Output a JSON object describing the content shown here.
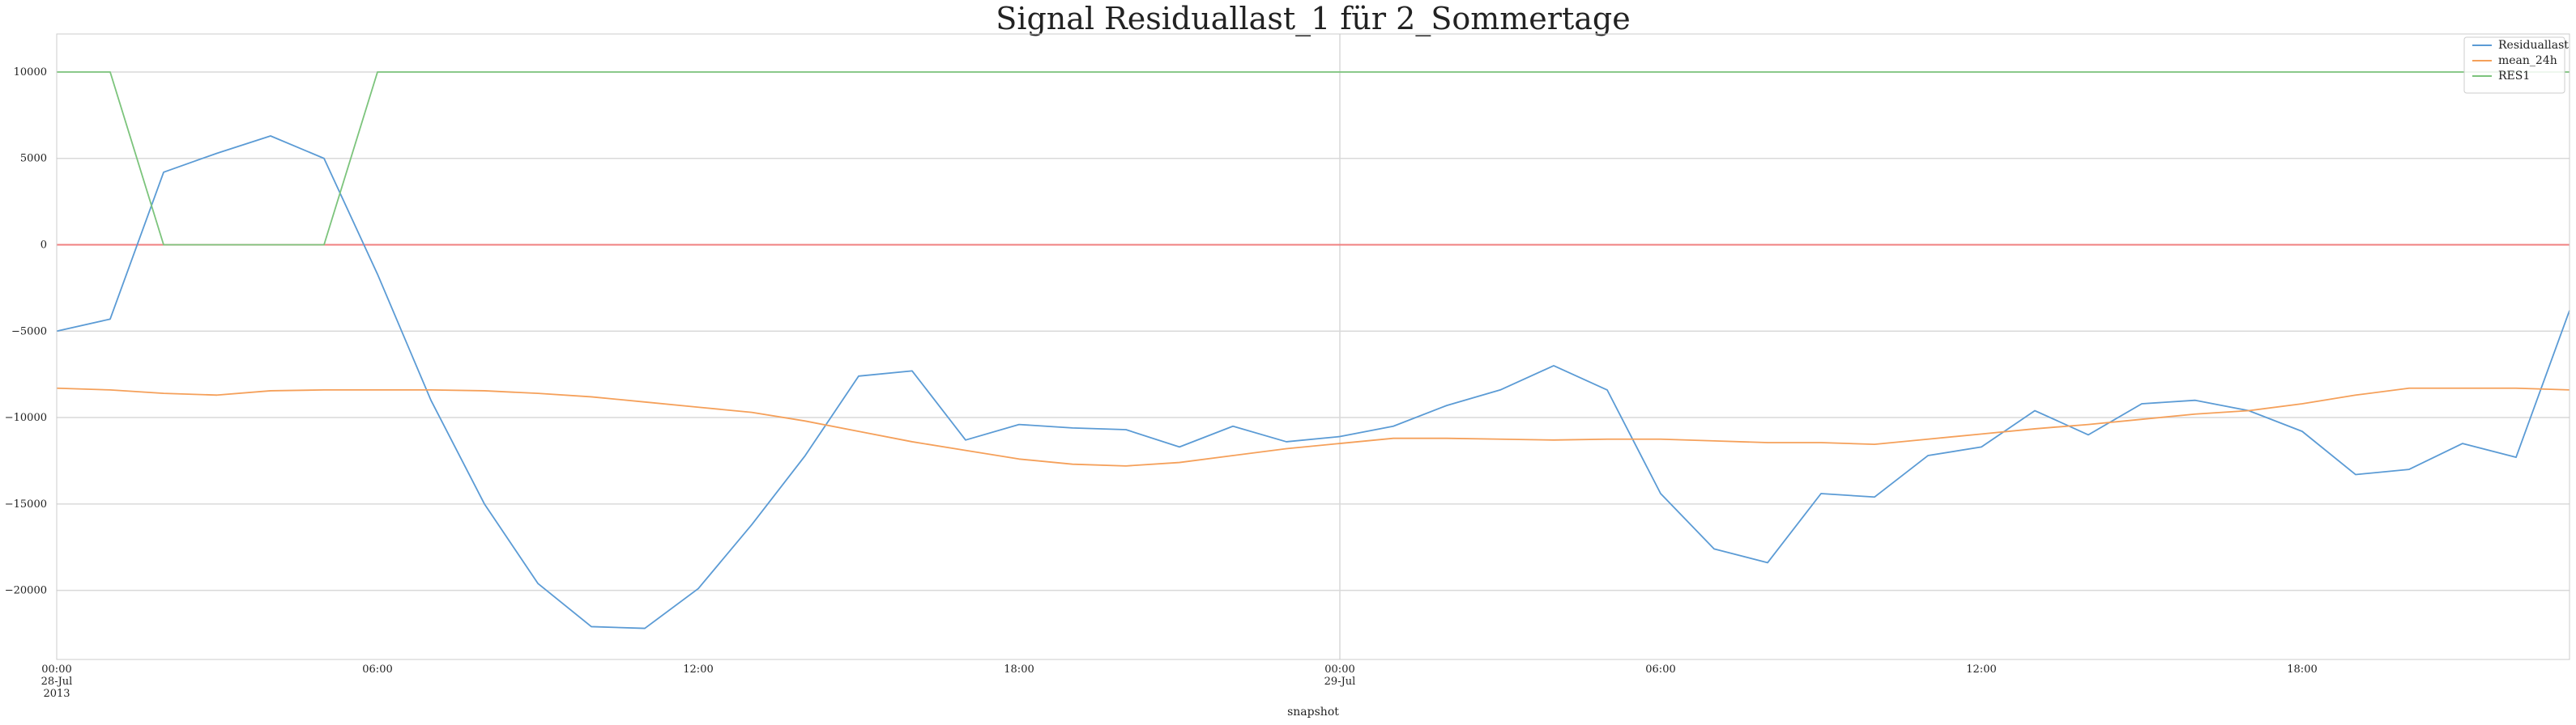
{
  "chart_data": {
    "type": "line",
    "title": "Signal Residuallast_1 für 2_Sommertage",
    "xlabel": "snapshot",
    "ylabel": "",
    "ylim": [
      -24000,
      12200
    ],
    "yticks": [
      10000,
      5000,
      0,
      -5000,
      -10000,
      -15000,
      -20000
    ],
    "ytick_labels": [
      "10000",
      "5000",
      "0",
      "−5000",
      "−10000",
      "−15000",
      "−20000"
    ],
    "x_start": "2013-07-28 00:00",
    "x_step_hours": 1,
    "xlim_hours": [
      0,
      47
    ],
    "xticks": [
      {
        "hour": 0,
        "lines": [
          "00:00",
          "28-Jul",
          "2013"
        ]
      },
      {
        "hour": 6,
        "lines": [
          "06:00"
        ]
      },
      {
        "hour": 12,
        "lines": [
          "12:00"
        ]
      },
      {
        "hour": 18,
        "lines": [
          "18:00"
        ]
      },
      {
        "hour": 24,
        "lines": [
          "00:00",
          "29-Jul"
        ]
      },
      {
        "hour": 30,
        "lines": [
          "06:00"
        ]
      },
      {
        "hour": 36,
        "lines": [
          "12:00"
        ]
      },
      {
        "hour": 42,
        "lines": [
          "18:00"
        ]
      }
    ],
    "grid": true,
    "legend_position": "upper right",
    "zero_line_color": "#f08080",
    "series": [
      {
        "name": "Residuallast",
        "color": "#5b9bd5",
        "values": [
          -5000,
          -4300,
          4200,
          5300,
          6300,
          5000,
          -1700,
          -9000,
          -15000,
          -19600,
          -22100,
          -22200,
          -19900,
          -16200,
          -12200,
          -7600,
          -7300,
          -11300,
          -10400,
          -10600,
          -10700,
          -11700,
          -10500,
          -11400,
          -11100,
          -10500,
          -9300,
          -8400,
          -7000,
          -8400,
          -14400,
          -17600,
          -18400,
          -14400,
          -14600,
          -12200,
          -11700,
          -9600,
          -11000,
          -9200,
          -9000,
          -9600,
          -10800,
          -13300,
          -13000,
          -11500,
          -12300,
          -3800
        ]
      },
      {
        "name": "mean_24h",
        "color": "#f5a05a",
        "values": [
          -8300,
          -8400,
          -8600,
          -8700,
          -8450,
          -8400,
          -8400,
          -8400,
          -8450,
          -8600,
          -8800,
          -9100,
          -9400,
          -9700,
          -10200,
          -10800,
          -11400,
          -11900,
          -12400,
          -12700,
          -12800,
          -12600,
          -12200,
          -11800,
          -11500,
          -11200,
          -11200,
          -11250,
          -11300,
          -11250,
          -11250,
          -11350,
          -11450,
          -11450,
          -11550,
          -11250,
          -10950,
          -10650,
          -10400,
          -10100,
          -9800,
          -9600,
          -9200,
          -8700,
          -8300,
          -8300,
          -8300,
          -8400
        ]
      },
      {
        "name": "RES1",
        "color": "#7cc47c",
        "values": [
          10000,
          10000,
          0,
          0,
          0,
          0,
          10000,
          10000,
          10000,
          10000,
          10000,
          10000,
          10000,
          10000,
          10000,
          10000,
          10000,
          10000,
          10000,
          10000,
          10000,
          10000,
          10000,
          10000,
          10000,
          10000,
          10000,
          10000,
          10000,
          10000,
          10000,
          10000,
          10000,
          10000,
          10000,
          10000,
          10000,
          10000,
          10000,
          10000,
          10000,
          10000,
          10000,
          10000,
          10000,
          10000,
          10000,
          10000
        ]
      }
    ]
  }
}
